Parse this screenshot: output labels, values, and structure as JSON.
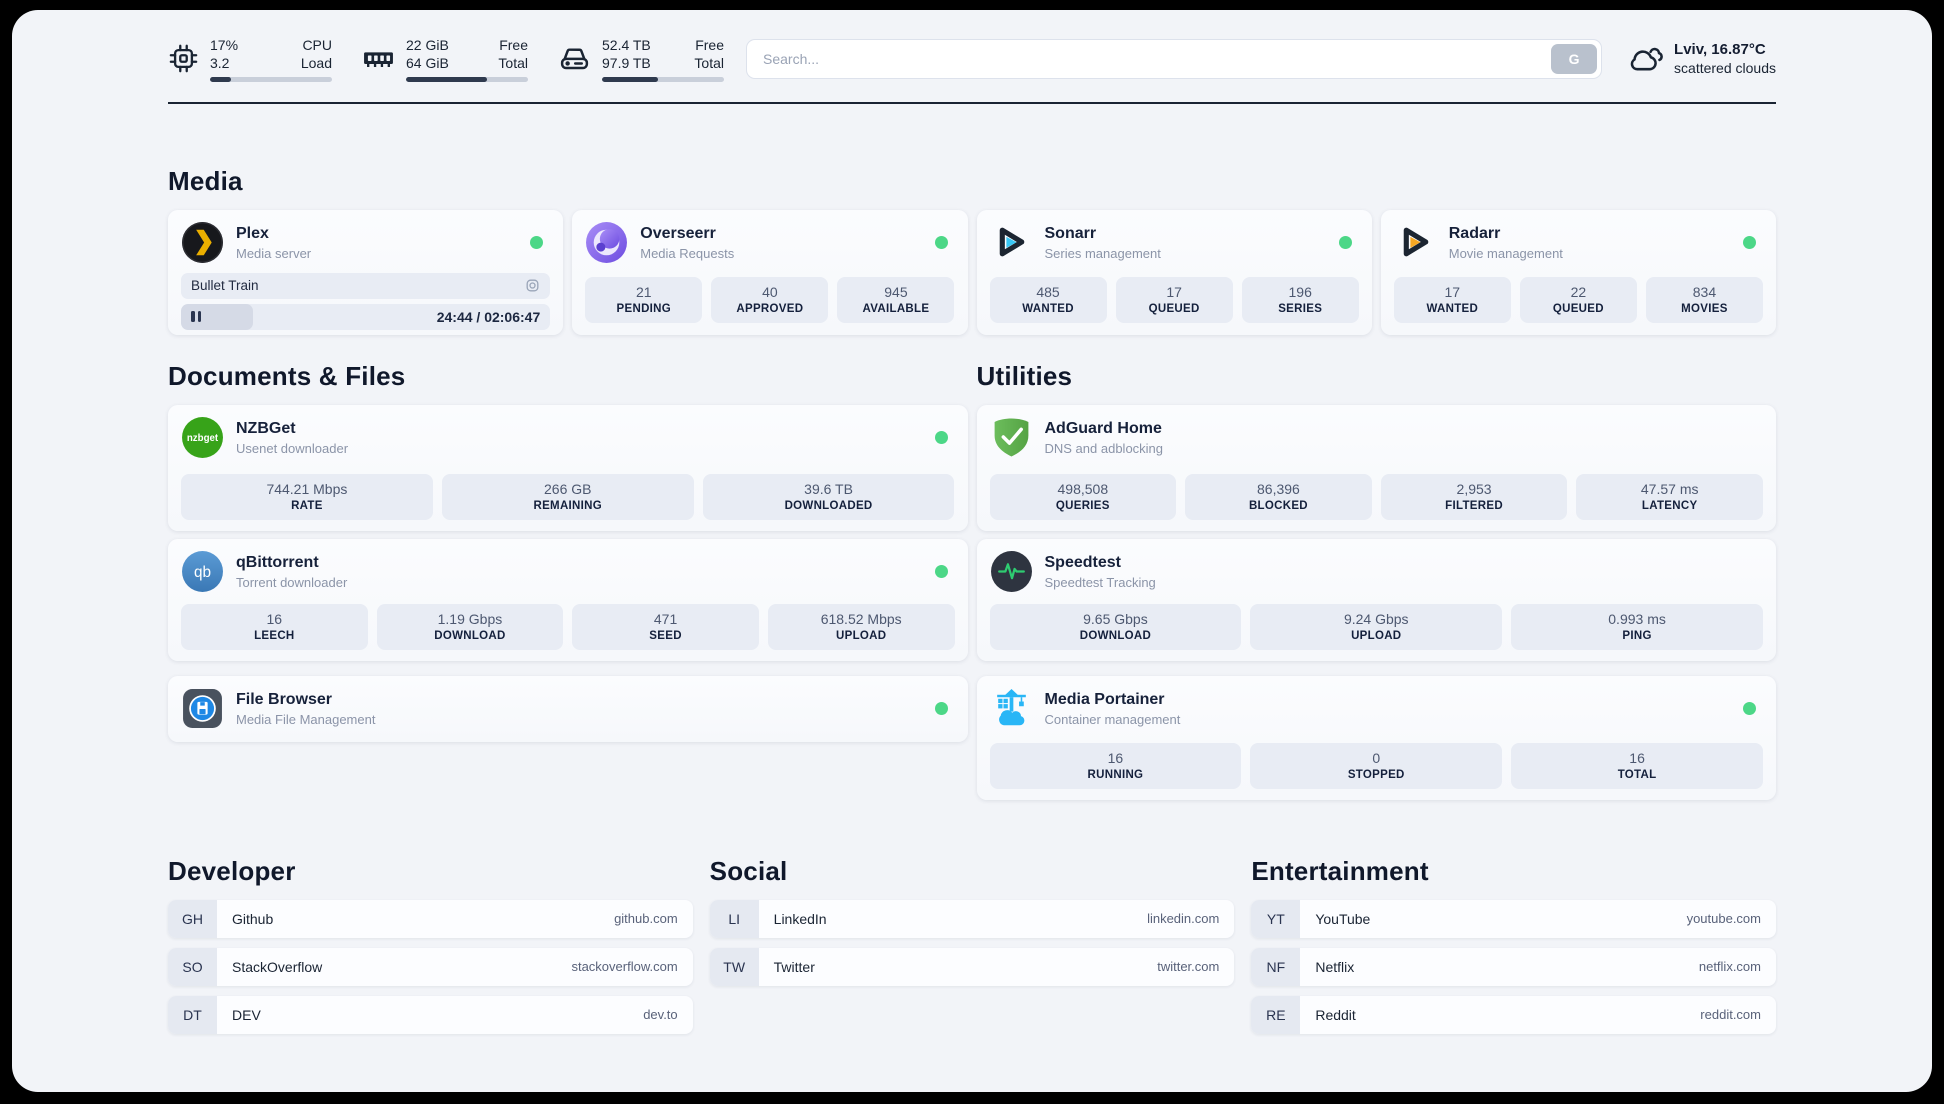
{
  "topbar": {
    "monitors": [
      {
        "icon": "cpu-icon",
        "values": [
          "17%",
          "3.2"
        ],
        "labels": [
          "CPU",
          "Load"
        ],
        "progress": 17
      },
      {
        "icon": "memory-icon",
        "values": [
          "22 GiB",
          "64 GiB"
        ],
        "labels": [
          "Free",
          "Total"
        ],
        "progress": 66
      },
      {
        "icon": "disk-icon",
        "values": [
          "52.4 TB",
          "97.9 TB"
        ],
        "labels": [
          "Free",
          "Total"
        ],
        "progress": 46
      }
    ],
    "search": {
      "placeholder": "Search...",
      "button_label": "G"
    },
    "weather": {
      "location_temp": "Lviv, 16.87°C",
      "condition": "scattered clouds"
    }
  },
  "media": {
    "title": "Media",
    "plex": {
      "name": "Plex",
      "desc": "Media server",
      "now_playing": "Bullet Train",
      "time": "24:44 / 02:06:47",
      "progress_pct": 19.5
    },
    "overseerr": {
      "name": "Overseerr",
      "desc": "Media Requests",
      "stats": [
        {
          "value": "21",
          "label": "PENDING"
        },
        {
          "value": "40",
          "label": "APPROVED"
        },
        {
          "value": "945",
          "label": "AVAILABLE"
        }
      ]
    },
    "sonarr": {
      "name": "Sonarr",
      "desc": "Series management",
      "stats": [
        {
          "value": "485",
          "label": "WANTED"
        },
        {
          "value": "17",
          "label": "QUEUED"
        },
        {
          "value": "196",
          "label": "SERIES"
        }
      ]
    },
    "radarr": {
      "name": "Radarr",
      "desc": "Movie management",
      "stats": [
        {
          "value": "17",
          "label": "WANTED"
        },
        {
          "value": "22",
          "label": "QUEUED"
        },
        {
          "value": "834",
          "label": "MOVIES"
        }
      ]
    }
  },
  "documents": {
    "title": "Documents & Files",
    "nzbget": {
      "name": "NZBGet",
      "desc": "Usenet downloader",
      "stats": [
        {
          "value": "744.21 Mbps",
          "label": "RATE"
        },
        {
          "value": "266 GB",
          "label": "REMAINING"
        },
        {
          "value": "39.6 TB",
          "label": "DOWNLOADED"
        }
      ]
    },
    "qbittorrent": {
      "name": "qBittorrent",
      "desc": "Torrent downloader",
      "stats": [
        {
          "value": "16",
          "label": "LEECH"
        },
        {
          "value": "1.19 Gbps",
          "label": "DOWNLOAD"
        },
        {
          "value": "471",
          "label": "SEED"
        },
        {
          "value": "618.52 Mbps",
          "label": "UPLOAD"
        }
      ]
    },
    "filebrowser": {
      "name": "File Browser",
      "desc": "Media File Management"
    }
  },
  "utilities": {
    "title": "Utilities",
    "adguard": {
      "name": "AdGuard Home",
      "desc": "DNS and adblocking",
      "stats": [
        {
          "value": "498,508",
          "label": "QUERIES"
        },
        {
          "value": "86,396",
          "label": "BLOCKED"
        },
        {
          "value": "2,953",
          "label": "FILTERED"
        },
        {
          "value": "47.57 ms",
          "label": "LATENCY"
        }
      ]
    },
    "speedtest": {
      "name": "Speedtest",
      "desc": "Speedtest Tracking",
      "stats": [
        {
          "value": "9.65 Gbps",
          "label": "DOWNLOAD"
        },
        {
          "value": "9.24 Gbps",
          "label": "UPLOAD"
        },
        {
          "value": "0.993 ms",
          "label": "PING"
        }
      ]
    },
    "portainer": {
      "name": "Media Portainer",
      "desc": "Container management",
      "stats": [
        {
          "value": "16",
          "label": "RUNNING"
        },
        {
          "value": "0",
          "label": "STOPPED"
        },
        {
          "value": "16",
          "label": "TOTAL"
        }
      ]
    }
  },
  "bookmarks": [
    {
      "title": "Developer",
      "items": [
        {
          "abbr": "GH",
          "name": "Github",
          "url": "github.com"
        },
        {
          "abbr": "SO",
          "name": "StackOverflow",
          "url": "stackoverflow.com"
        },
        {
          "abbr": "DT",
          "name": "DEV",
          "url": "dev.to"
        }
      ]
    },
    {
      "title": "Social",
      "items": [
        {
          "abbr": "LI",
          "name": "LinkedIn",
          "url": "linkedin.com"
        },
        {
          "abbr": "TW",
          "name": "Twitter",
          "url": "twitter.com"
        }
      ]
    },
    {
      "title": "Entertainment",
      "items": [
        {
          "abbr": "YT",
          "name": "YouTube",
          "url": "youtube.com"
        },
        {
          "abbr": "NF",
          "name": "Netflix",
          "url": "netflix.com"
        },
        {
          "abbr": "RE",
          "name": "Reddit",
          "url": "reddit.com"
        }
      ]
    }
  ],
  "icons": {
    "nzbget_text": "nzbget",
    "qbittorrent_text": "qb"
  },
  "colors": {
    "status_online": "#4cd787",
    "plex_accent": "#ebaf00",
    "sonarr_accent": "#38c6f4",
    "radarr_accent": "#f7a823",
    "nzbget_green": "#37a319",
    "qbittorrent_blue": "#4788c7",
    "adguard_green": "#63b254",
    "portainer_blue": "#29b6f6",
    "speedtest_pulse": "#2ecc71",
    "tile_bg": "#e8ecf4",
    "page_bg": "#f2f4f8",
    "text_dark": "#16213a"
  }
}
